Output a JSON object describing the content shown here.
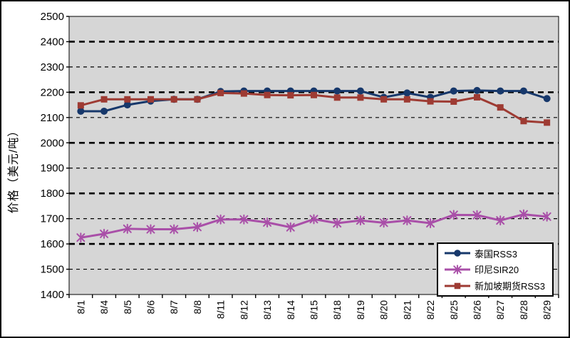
{
  "y_axis_title": "价格（美元/吨）",
  "colors": {
    "thailand_rss3": "#17386B",
    "indonesia_sir20": "#A94FA8",
    "singapore_futures_rss3": "#9E3B33",
    "plot_background": "#D6D6D6",
    "gridline": "#000000",
    "frame_border": "#000000"
  },
  "chart_data": {
    "type": "line",
    "title": "",
    "xlabel": "",
    "ylabel": "价格（美元/吨）",
    "ylim": [
      1400,
      2500
    ],
    "ytick_step": 100,
    "yticks": [
      1400,
      1500,
      1600,
      1700,
      1800,
      1900,
      2000,
      2100,
      2200,
      2300,
      2400,
      2500
    ],
    "grid": "dashed horizontal",
    "plot_bg": "#D6D6D6",
    "legend_position": "bottom-right",
    "categories": [
      "8/1",
      "8/4",
      "8/5",
      "8/6",
      "8/7",
      "8/8",
      "8/11",
      "8/12",
      "8/13",
      "8/14",
      "8/15",
      "8/18",
      "8/19",
      "8/20",
      "8/21",
      "8/22",
      "8/25",
      "8/26",
      "8/27",
      "8/28",
      "8/29"
    ],
    "series": [
      {
        "name": "泰国RSS3",
        "color": "#17386B",
        "marker": "circle",
        "values": [
          2125,
          2125,
          2150,
          2165,
          2172,
          2172,
          2203,
          2205,
          2205,
          2205,
          2205,
          2205,
          2205,
          2180,
          2197,
          2180,
          2205,
          2207,
          2205,
          2205,
          2175
        ]
      },
      {
        "name": "印尼SIR20",
        "color": "#A94FA8",
        "marker": "star",
        "values": [
          1625,
          1640,
          1660,
          1658,
          1658,
          1667,
          1697,
          1697,
          1685,
          1666,
          1698,
          1682,
          1693,
          1684,
          1693,
          1682,
          1715,
          1714,
          1693,
          1717,
          1708
        ]
      },
      {
        "name": "新加坡期货RSS3",
        "color": "#9E3B33",
        "marker": "square",
        "values": [
          2148,
          2172,
          2172,
          2172,
          2172,
          2172,
          2197,
          2195,
          2189,
          2188,
          2189,
          2179,
          2179,
          2172,
          2172,
          2164,
          2163,
          2180,
          2140,
          2086,
          2080
        ]
      }
    ]
  }
}
